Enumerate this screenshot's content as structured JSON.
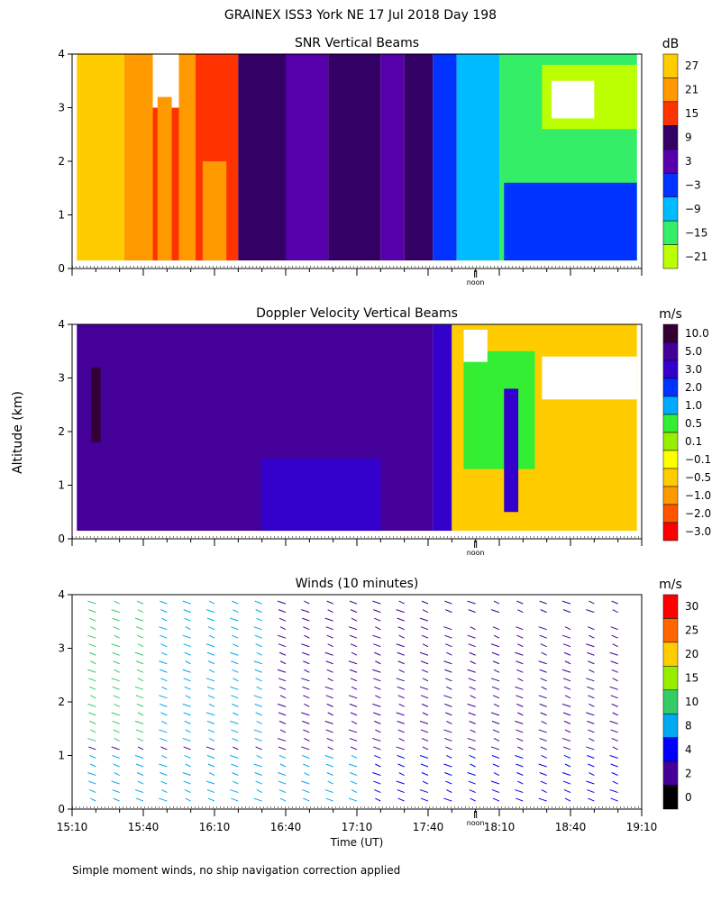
{
  "title": "GRAINEX ISS3 York NE  17 Jul 2018 Day 198",
  "ylabel": "Altitude (km)",
  "footnote": "Simple moment winds, no ship navigation correction applied",
  "noon_label": "noon",
  "chart_data": [
    {
      "type": "heatmap",
      "title": "SNR Vertical Beams",
      "colorbar_unit": "dB",
      "colorbar_labels": [
        "27",
        "21",
        "15",
        "9",
        "3",
        "−3",
        "−9",
        "−15",
        "−21"
      ],
      "colorbar_colors": [
        "#ffcc00",
        "#ff9900",
        "#ff3300",
        "#330066",
        "#5500aa",
        "#0033ff",
        "#00bbff",
        "#33ee66",
        "#bbff00"
      ],
      "ylim": [
        0,
        4
      ],
      "y_ticks": [
        "0",
        "1",
        "2",
        "3",
        "4"
      ],
      "xlim_minutes_utc": [
        910,
        1150
      ],
      "x_tick_labels": [],
      "noon_minute_utc": 1080,
      "regions": [
        {
          "x0": 912,
          "x1": 932,
          "y0": 0.15,
          "y1": 4.0,
          "value": 27
        },
        {
          "x0": 932,
          "x1": 936,
          "y0": 0.15,
          "y1": 4.0,
          "value": 21
        },
        {
          "x0": 936,
          "x1": 944,
          "y0": 0.15,
          "y1": 4.0,
          "value": 21
        },
        {
          "x0": 944,
          "x1": 955,
          "y0": 0.15,
          "y1": 3.0,
          "value": 15
        },
        {
          "x0": 946,
          "x1": 952,
          "y0": 0.15,
          "y1": 3.2,
          "value": 21
        },
        {
          "x0": 955,
          "x1": 962,
          "y0": 0.15,
          "y1": 4.0,
          "value": 21
        },
        {
          "x0": 962,
          "x1": 980,
          "y0": 0.15,
          "y1": 4.0,
          "value": 15
        },
        {
          "x0": 965,
          "x1": 975,
          "y0": 0.15,
          "y1": 2.0,
          "value": 21
        },
        {
          "x0": 980,
          "x1": 1000,
          "y0": 0.15,
          "y1": 4.0,
          "value": 9
        },
        {
          "x0": 1000,
          "x1": 1018,
          "y0": 0.15,
          "y1": 4.0,
          "value": 3
        },
        {
          "x0": 1018,
          "x1": 1040,
          "y0": 0.15,
          "y1": 4.0,
          "value": 9
        },
        {
          "x0": 1040,
          "x1": 1050,
          "y0": 0.15,
          "y1": 4.0,
          "value": 3
        },
        {
          "x0": 1050,
          "x1": 1062,
          "y0": 0.15,
          "y1": 4.0,
          "value": 9
        },
        {
          "x0": 1062,
          "x1": 1072,
          "y0": 0.15,
          "y1": 4.0,
          "value": -3
        },
        {
          "x0": 1072,
          "x1": 1090,
          "y0": 0.15,
          "y1": 4.0,
          "value": -9
        },
        {
          "x0": 1090,
          "x1": 1148,
          "y0": 0.15,
          "y1": 4.0,
          "value": -15
        },
        {
          "x0": 1092,
          "x1": 1148,
          "y0": 0.15,
          "y1": 1.6,
          "value": -3
        },
        {
          "x0": 1108,
          "x1": 1148,
          "y0": 2.6,
          "y1": 3.8,
          "value": -21
        },
        {
          "x0": 1112,
          "x1": 1130,
          "y0": 2.8,
          "y1": 3.5,
          "value": null
        }
      ]
    },
    {
      "type": "heatmap",
      "title": "Doppler Velocity Vertical Beams",
      "colorbar_unit": "m/s",
      "colorbar_labels": [
        "10.0",
        "5.0",
        "3.0",
        "2.0",
        "1.0",
        "0.5",
        "0.1",
        "−0.1",
        "−0.5",
        "−1.0",
        "−2.0",
        "−3.0"
      ],
      "colorbar_colors": [
        "#330033",
        "#440099",
        "#3300cc",
        "#0033ff",
        "#00aaff",
        "#33ee33",
        "#99ee00",
        "#ffff00",
        "#ffcc00",
        "#ff9900",
        "#ff5500",
        "#ff0000"
      ],
      "ylim": [
        0,
        4
      ],
      "y_ticks": [
        "0",
        "1",
        "2",
        "3",
        "4"
      ],
      "xlim_minutes_utc": [
        910,
        1150
      ],
      "x_tick_labels": [],
      "noon_minute_utc": 1080,
      "regions": [
        {
          "x0": 912,
          "x1": 1062,
          "y0": 0.15,
          "y1": 4.0,
          "value": 5.0
        },
        {
          "x0": 918,
          "x1": 922,
          "y0": 1.8,
          "y1": 3.2,
          "value": 10.0
        },
        {
          "x0": 990,
          "x1": 1040,
          "y0": 0.15,
          "y1": 1.5,
          "value": 3.0
        },
        {
          "x0": 1062,
          "x1": 1070,
          "y0": 0.15,
          "y1": 4.0,
          "value": 3.0
        },
        {
          "x0": 1070,
          "x1": 1148,
          "y0": 0.15,
          "y1": 4.0,
          "value": -0.5
        },
        {
          "x0": 1075,
          "x1": 1105,
          "y0": 1.3,
          "y1": 3.5,
          "value": 0.5
        },
        {
          "x0": 1092,
          "x1": 1098,
          "y0": 0.5,
          "y1": 2.8,
          "value": 3.0
        },
        {
          "x0": 1108,
          "x1": 1148,
          "y0": 2.6,
          "y1": 3.4,
          "value": null
        },
        {
          "x0": 1075,
          "x1": 1085,
          "y0": 3.3,
          "y1": 3.9,
          "value": null
        }
      ]
    },
    {
      "type": "scatter",
      "title": "Winds (10 minutes)",
      "colorbar_unit": "m/s",
      "colorbar_labels": [
        "30",
        "25",
        "20",
        "15",
        "10",
        "8",
        "4",
        "2",
        "0"
      ],
      "colorbar_colors": [
        "#ff0000",
        "#ff6600",
        "#ffcc00",
        "#99ee00",
        "#33cc66",
        "#00aaee",
        "#0000ff",
        "#440099",
        "#000000"
      ],
      "ylim": [
        0,
        4
      ],
      "y_ticks": [
        "0",
        "1",
        "2",
        "3",
        "4"
      ],
      "xlim_minutes_utc": [
        910,
        1150
      ],
      "x_tick_labels": [
        "15:10",
        "15:40",
        "16:10",
        "16:40",
        "17:10",
        "17:40",
        "18:10",
        "18:40",
        "19:10"
      ],
      "noon_minute_utc": 1080,
      "xlabel": "Time (UT)",
      "profile_times_utc": [
        920,
        930,
        940,
        950,
        960,
        970,
        980,
        990,
        1000,
        1010,
        1020,
        1030,
        1040,
        1050,
        1060,
        1070,
        1080,
        1090,
        1100,
        1110,
        1120,
        1130,
        1140
      ]
    }
  ]
}
